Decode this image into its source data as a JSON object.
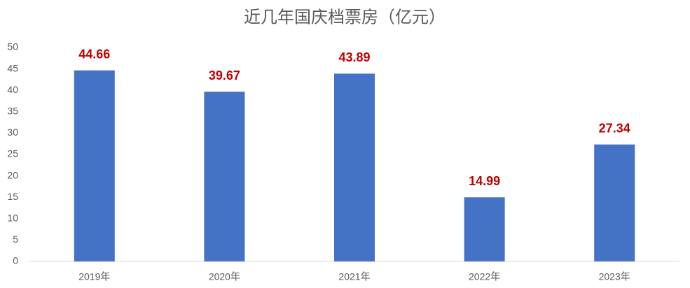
{
  "chart_data": {
    "type": "bar",
    "title": "近几年国庆档票房（亿元）",
    "categories": [
      "2019年",
      "2020年",
      "2021年",
      "2022年",
      "2023年"
    ],
    "values": [
      44.66,
      39.67,
      43.89,
      14.99,
      27.34
    ],
    "color": "#4472c4",
    "value_label_color": "#c00000",
    "ylim": [
      0,
      50
    ],
    "yticks": [
      0,
      5,
      10,
      15,
      20,
      25,
      30,
      35,
      40,
      45,
      50
    ],
    "grid": false
  }
}
